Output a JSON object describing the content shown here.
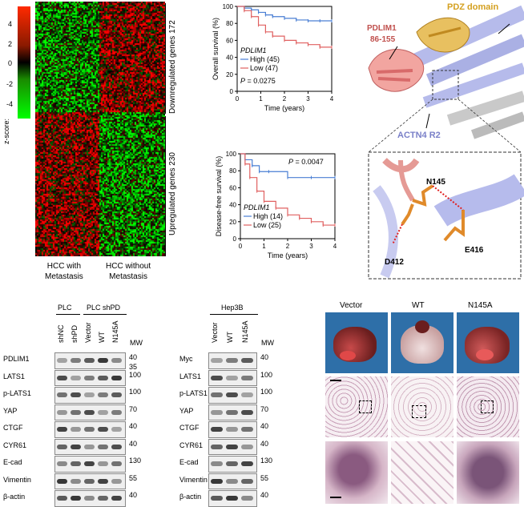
{
  "heatmap": {
    "zscore_label": "z-score:",
    "zscore_ticks": [
      "4",
      "2",
      "0",
      "-2",
      "-4"
    ],
    "group_labels": [
      "HCC with\nMetastasis",
      "HCC without\nMetastasis"
    ],
    "side_labels": [
      "Downregulated genes 172",
      "Upregulated genes 230"
    ]
  },
  "chart_data": [
    {
      "type": "line",
      "title": "",
      "xlabel": "Time (years)",
      "ylabel": "Overall survival (%)",
      "xlim": [
        0,
        4
      ],
      "ylim": [
        0,
        100
      ],
      "xticks": [
        "0",
        "1",
        "2",
        "3",
        "4"
      ],
      "yticks": [
        "0",
        "20",
        "40",
        "60",
        "80",
        "100"
      ],
      "legend_title": "PDLIM1",
      "pvalue": "P = 0.0275",
      "series": [
        {
          "name": "High (45)",
          "color": "#4a7fd4",
          "x": [
            0,
            0.3,
            0.6,
            0.9,
            1.2,
            1.5,
            2.0,
            2.5,
            3.0,
            3.5,
            4.0
          ],
          "y": [
            100,
            98,
            96,
            93,
            90,
            88,
            86,
            84,
            83,
            83,
            83
          ]
        },
        {
          "name": "Low (47)",
          "color": "#e06060",
          "x": [
            0,
            0.3,
            0.6,
            0.9,
            1.2,
            1.5,
            2.0,
            2.5,
            3.0,
            3.5,
            4.0
          ],
          "y": [
            100,
            95,
            88,
            78,
            70,
            65,
            60,
            57,
            55,
            52,
            52
          ]
        }
      ]
    },
    {
      "type": "line",
      "title": "",
      "xlabel": "Time (years)",
      "ylabel": "Disease-free survival (%)",
      "xlim": [
        0,
        4
      ],
      "ylim": [
        0,
        100
      ],
      "xticks": [
        "0",
        "1",
        "2",
        "3",
        "4"
      ],
      "yticks": [
        "0",
        "20",
        "40",
        "60",
        "80",
        "100"
      ],
      "legend_title": "PDLIM1",
      "pvalue": "P = 0.0047",
      "series": [
        {
          "name": "High (14)",
          "color": "#4a7fd4",
          "x": [
            0,
            0.2,
            0.5,
            0.8,
            1.2,
            2.0,
            3.0,
            4.0
          ],
          "y": [
            100,
            93,
            86,
            79,
            79,
            72,
            72,
            72
          ]
        },
        {
          "name": "Low (25)",
          "color": "#e06060",
          "x": [
            0,
            0.2,
            0.4,
            0.7,
            1.0,
            1.5,
            2.0,
            2.5,
            3.0,
            3.5,
            4.0
          ],
          "y": [
            100,
            88,
            72,
            56,
            44,
            36,
            28,
            24,
            20,
            16,
            16
          ]
        }
      ]
    }
  ],
  "structure": {
    "pdlim1_label": "PDLIM1\n86-155",
    "pdz_label": "PDZ domain",
    "actn4_label": "ACTN4 R2",
    "residues": [
      "N145",
      "E416",
      "D412"
    ]
  },
  "blot1": {
    "header_groups": [
      "PLC",
      "PLC  shPD"
    ],
    "lanes": [
      "shNC",
      "shPD",
      "Vector",
      "WT",
      "N145A"
    ],
    "mw_label": "MW",
    "rows": [
      {
        "name": "PDLIM1",
        "mw": [
          "40",
          "35"
        ]
      },
      {
        "name": "LATS1",
        "mw": [
          "100"
        ]
      },
      {
        "name": "p-LATS1",
        "mw": [
          "100"
        ]
      },
      {
        "name": "YAP",
        "mw": [
          "70"
        ]
      },
      {
        "name": "CTGF",
        "mw": [
          "40"
        ]
      },
      {
        "name": "CYR61",
        "mw": [
          "40"
        ]
      },
      {
        "name": "E-cad",
        "mw": [
          "130"
        ]
      },
      {
        "name": "Vimentin",
        "mw": [
          "55"
        ]
      },
      {
        "name": "β-actin",
        "mw": [
          "40"
        ]
      }
    ]
  },
  "blot2": {
    "header": "Hep3B",
    "lanes": [
      "Vector",
      "WT",
      "N145A"
    ],
    "mw_label": "MW",
    "rows": [
      {
        "name": "Myc",
        "mw": "40"
      },
      {
        "name": "LATS1",
        "mw": "100"
      },
      {
        "name": "p-LATS1",
        "mw": "100"
      },
      {
        "name": "YAP",
        "mw": "70"
      },
      {
        "name": "CTGF",
        "mw": "40"
      },
      {
        "name": "CYR61",
        "mw": "40"
      },
      {
        "name": "E-cad",
        "mw": "130"
      },
      {
        "name": "Vimentin",
        "mw": "55"
      },
      {
        "name": "β-actin",
        "mw": "40"
      }
    ]
  },
  "histology": {
    "columns": [
      "Vector",
      "WT",
      "N145A"
    ]
  }
}
